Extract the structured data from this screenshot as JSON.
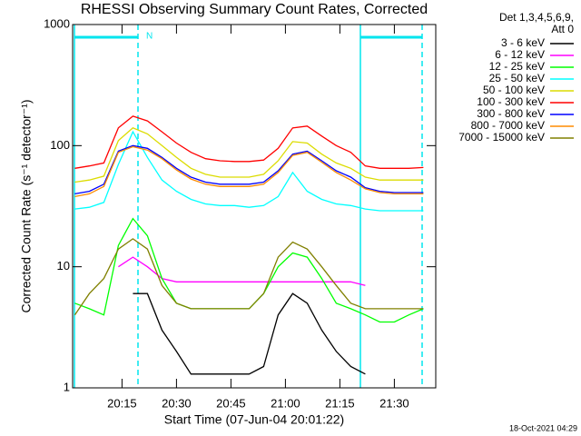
{
  "chart_data": {
    "type": "line",
    "title": "RHESSI Observing Summary Count Rates, Corrected",
    "xlabel": "Start Time (07-Jun-04 20:01:22)",
    "ylabel": "Corrected Count Rate (s⁻¹ detector⁻¹)",
    "legend_title": [
      "Det 1,3,4,5,6,9,",
      "Att 0"
    ],
    "legend": "outside-right",
    "annotation": "N",
    "footer": "18-Oct-2021 04:29",
    "log_y": true,
    "xlim": [
      1.4,
      101.4
    ],
    "ylim": [
      1,
      1000
    ],
    "xticks": [
      {
        "value": 15,
        "label": "20:15"
      },
      {
        "value": 30,
        "label": "20:30"
      },
      {
        "value": 45,
        "label": "20:45"
      },
      {
        "value": 60,
        "label": "21:00"
      },
      {
        "value": 75,
        "label": "21:15"
      },
      {
        "value": 90,
        "label": "21:30"
      }
    ],
    "yticks": [
      1,
      10,
      100,
      1000
    ],
    "x": [
      2,
      6,
      10,
      14,
      18,
      22,
      26,
      30,
      34,
      38,
      42,
      46,
      50,
      54,
      58,
      62,
      66,
      70,
      74,
      78,
      82,
      86,
      90,
      94,
      98
    ],
    "series": [
      {
        "name": "3 - 6 keV",
        "color": "#000000",
        "values": [
          null,
          null,
          null,
          null,
          6,
          6,
          3,
          2,
          1.3,
          1.3,
          1.3,
          1.3,
          1.3,
          1.5,
          4,
          6,
          5,
          3,
          2,
          1.5,
          1.3,
          null,
          null,
          null,
          null
        ]
      },
      {
        "name": "6 - 12 keV",
        "color": "#ff00ff",
        "values": [
          null,
          null,
          null,
          10,
          12,
          10,
          8,
          7.5,
          7.5,
          7.5,
          7.5,
          7.5,
          7.5,
          7.5,
          7.5,
          7.5,
          7.5,
          7.5,
          7.5,
          7.5,
          7,
          null,
          null,
          null,
          null
        ]
      },
      {
        "name": "12 - 25 keV",
        "color": "#00ff00",
        "values": [
          5,
          4.5,
          4,
          15,
          25,
          18,
          8,
          5,
          4.5,
          4.5,
          4.5,
          4.5,
          4.5,
          6,
          10,
          13,
          12,
          8,
          5,
          4.5,
          4,
          3.5,
          3.5,
          4,
          4.5
        ]
      },
      {
        "name": "25 - 50 keV",
        "color": "#00ffff",
        "values": [
          30,
          31,
          34,
          70,
          130,
          80,
          52,
          42,
          36,
          33,
          32,
          32,
          31,
          32,
          38,
          60,
          42,
          36,
          33,
          32,
          30,
          29,
          29,
          29,
          29
        ]
      },
      {
        "name": "50 - 100 keV",
        "color": "#dcdc00",
        "values": [
          50,
          52,
          56,
          110,
          140,
          125,
          100,
          80,
          65,
          58,
          55,
          55,
          55,
          58,
          75,
          108,
          105,
          85,
          72,
          65,
          55,
          52,
          52,
          52,
          52
        ]
      },
      {
        "name": "100 - 300 keV",
        "color": "#ff0000",
        "values": [
          65,
          68,
          72,
          140,
          175,
          160,
          130,
          105,
          88,
          78,
          75,
          74,
          74,
          76,
          95,
          140,
          145,
          120,
          100,
          88,
          68,
          65,
          65,
          65,
          66
        ]
      },
      {
        "name": "300 - 800 keV",
        "color": "#0000ff",
        "values": [
          40,
          42,
          48,
          90,
          100,
          95,
          80,
          65,
          55,
          50,
          48,
          48,
          48,
          50,
          62,
          85,
          90,
          75,
          62,
          55,
          45,
          42,
          41,
          41,
          41
        ]
      },
      {
        "name": "800 - 7000 keV",
        "color": "#ff8c00",
        "values": [
          38,
          40,
          46,
          88,
          98,
          92,
          78,
          63,
          53,
          48,
          46,
          46,
          46,
          48,
          60,
          83,
          88,
          73,
          60,
          52,
          44,
          41,
          40,
          40,
          40
        ]
      },
      {
        "name": "7000 - 15000 keV",
        "color": "#808000",
        "values": [
          4,
          6,
          8,
          14,
          17,
          14,
          7,
          5,
          4.5,
          4.5,
          4.5,
          4.5,
          4.5,
          6,
          12,
          16,
          14,
          10,
          7,
          5,
          4.5,
          4.5,
          4.5,
          4.5,
          4.5
        ]
      }
    ]
  }
}
